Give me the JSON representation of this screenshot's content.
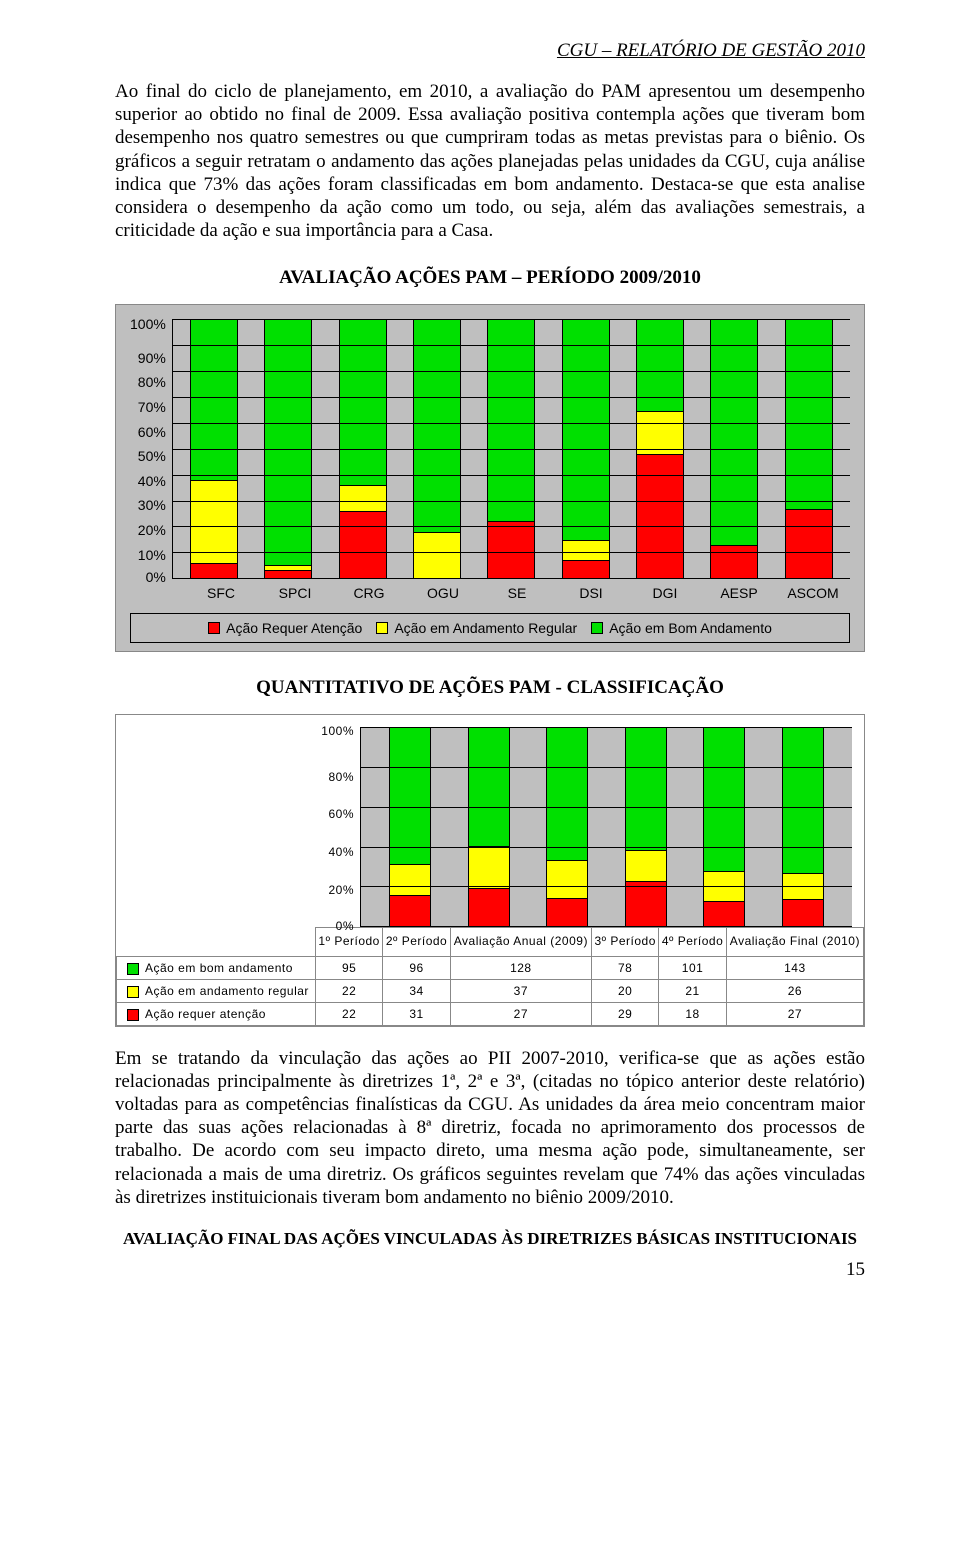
{
  "doc": {
    "header": "CGU – RELATÓRIO DE GESTÃO 2010",
    "para1": "Ao final do ciclo de planejamento, em 2010, a avaliação do PAM apresentou um desempenho superior ao obtido no final de 2009. Essa avaliação positiva contempla ações que tiveram bom desempenho nos quatro semestres ou que cumpriram todas as metas previstas para o biênio. Os gráficos a seguir retratam o andamento das ações planejadas pelas unidades da CGU, cuja análise indica que 73% das ações foram classificadas em bom andamento. Destaca-se que esta analise considera o desempenho da ação como um todo, ou seja, além das avaliações semestrais, a criticidade da ação e sua importância para a Casa.",
    "chart1_title": "AVALIAÇÃO AÇÕES PAM – PERÍODO 2009/2010",
    "chart2_title": "QUANTITATIVO DE AÇÕES PAM - CLASSIFICAÇÃO",
    "para2": "Em se tratando da vinculação das ações ao PII 2007-2010, verifica-se que as ações estão relacionadas  principalmente às diretrizes 1ª, 2ª e 3ª,  (citadas no tópico anterior deste relatório) voltadas para as competências finalísticas da CGU. As unidades da área meio concentram maior parte das suas ações relacionadas à 8ª diretriz, focada no aprimoramento dos processos de trabalho. De acordo com seu impacto direto, uma mesma ação pode, simultaneamente, ser relacionada a mais de uma diretriz. Os gráficos seguintes revelam que 74% das ações vinculadas às diretrizes instituicionais tiveram bom andamento no biênio 2009/2010.",
    "subtitle": "AVALIAÇÃO FINAL DAS AÇÕES VINCULADAS ÀS DIRETRIZES BÁSICAS INSTITUCIONAIS",
    "pagenum": "15"
  },
  "colors": {
    "red": "#ff0000",
    "yellow": "#ffff00",
    "green": "#00e000",
    "plot_bg": "#bfbfbf",
    "grid": "#000000"
  },
  "chart1": {
    "type": "stacked-bar-100",
    "y_ticks": [
      "100%",
      "90%",
      "80%",
      "70%",
      "60%",
      "50%",
      "40%",
      "30%",
      "20%",
      "10%",
      "0%"
    ],
    "categories": [
      "SFC",
      "SPCI",
      "CRG",
      "OGU",
      "SE",
      "DSI",
      "DGI",
      "AESP",
      "ASCOM"
    ],
    "series_labels": [
      "Ação Requer Atenção",
      "Ação em Andamento Regular",
      "Ação em Bom Andamento"
    ],
    "series_colors": [
      "red",
      "yellow",
      "green"
    ],
    "data_pct": {
      "SFC": {
        "red": 6,
        "yellow": 32,
        "green": 62
      },
      "SPCI": {
        "red": 3,
        "yellow": 2,
        "green": 95
      },
      "CRG": {
        "red": 26,
        "yellow": 10,
        "green": 64
      },
      "OGU": {
        "red": 0,
        "yellow": 18,
        "green": 82
      },
      "SE": {
        "red": 22,
        "yellow": 0,
        "green": 78
      },
      "DSI": {
        "red": 7,
        "yellow": 8,
        "green": 85
      },
      "DGI": {
        "red": 48,
        "yellow": 17,
        "green": 35
      },
      "AESP": {
        "red": 13,
        "yellow": 0,
        "green": 87
      },
      "ASCOM": {
        "red": 27,
        "yellow": 0,
        "green": 73
      }
    }
  },
  "chart2": {
    "type": "stacked-bar-100-with-table",
    "y_ticks": [
      "100%",
      "80%",
      "60%",
      "40%",
      "20%",
      "0%"
    ],
    "columns": [
      "1º Período",
      "2º Período",
      "Avaliação Anual (2009)",
      "3º Período",
      "4º Período",
      "Avaliação Final (2010)"
    ],
    "row_labels": [
      "Ação em bom andamento",
      "Ação em andamento regular",
      "Ação requer atenção"
    ],
    "row_colors": [
      "green",
      "yellow",
      "red"
    ],
    "rows": [
      [
        95,
        96,
        128,
        78,
        101,
        143
      ],
      [
        22,
        34,
        37,
        20,
        21,
        26
      ],
      [
        22,
        31,
        27,
        29,
        18,
        27
      ]
    ]
  }
}
